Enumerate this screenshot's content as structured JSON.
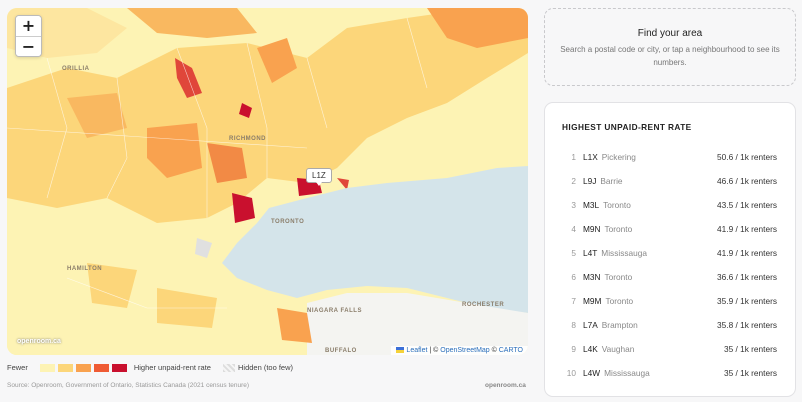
{
  "map": {
    "zoom_in": "+",
    "zoom_out": "−",
    "pin_label": "L1Z",
    "places": [
      {
        "name": "ORILLIA",
        "id": "orillia"
      },
      {
        "name": "RICHMOND",
        "id": "richmond"
      },
      {
        "name": "TORONTO",
        "id": "toronto"
      },
      {
        "name": "ROCHESTER",
        "id": "rochester"
      },
      {
        "name": "NIAGARA FALLS",
        "id": "niagara"
      },
      {
        "name": "BUFFALO",
        "id": "buffalo"
      },
      {
        "name": "HAMILTON",
        "id": "hamilton"
      }
    ],
    "watermark": "openroom.ca",
    "attribution": {
      "leaflet": "Leaflet",
      "osm": "OpenStreetMap",
      "carto": "CARTO",
      "sep1": " | © ",
      "sep2": " © "
    }
  },
  "legend": {
    "fewer": "Fewer",
    "higher": "Higher unpaid-rent rate",
    "hidden": "Hidden (too few)",
    "colors": [
      "#fdf3b4",
      "#fcd67a",
      "#f9a24f",
      "#ef5b34",
      "#c9102e"
    ]
  },
  "footer": {
    "source": "Source: Openroom, Government of Ontario, Statistics Canada (2021 census tenure)",
    "brand": "openroom.ca"
  },
  "search": {
    "title": "Find your area",
    "hint": "Search a postal code or city, or tap a neighbourhood to see its numbers."
  },
  "ranking": {
    "title": "HIGHEST UNPAID-RENT RATE",
    "rows": [
      {
        "rank": "1",
        "code": "L1X",
        "city": "Pickering",
        "value": "50.6 / 1k renters"
      },
      {
        "rank": "2",
        "code": "L9J",
        "city": "Barrie",
        "value": "46.6 / 1k renters"
      },
      {
        "rank": "3",
        "code": "M3L",
        "city": "Toronto",
        "value": "43.5 / 1k renters"
      },
      {
        "rank": "4",
        "code": "M9N",
        "city": "Toronto",
        "value": "41.9 / 1k renters"
      },
      {
        "rank": "5",
        "code": "L4T",
        "city": "Mississauga",
        "value": "41.9 / 1k renters"
      },
      {
        "rank": "6",
        "code": "M3N",
        "city": "Toronto",
        "value": "36.6 / 1k renters"
      },
      {
        "rank": "7",
        "code": "M9M",
        "city": "Toronto",
        "value": "35.9 / 1k renters"
      },
      {
        "rank": "8",
        "code": "L7A",
        "city": "Brampton",
        "value": "35.8 / 1k renters"
      },
      {
        "rank": "9",
        "code": "L4K",
        "city": "Vaughan",
        "value": "35 / 1k renters"
      },
      {
        "rank": "10",
        "code": "L4W",
        "city": "Mississauga",
        "value": "35 / 1k renters"
      }
    ]
  }
}
